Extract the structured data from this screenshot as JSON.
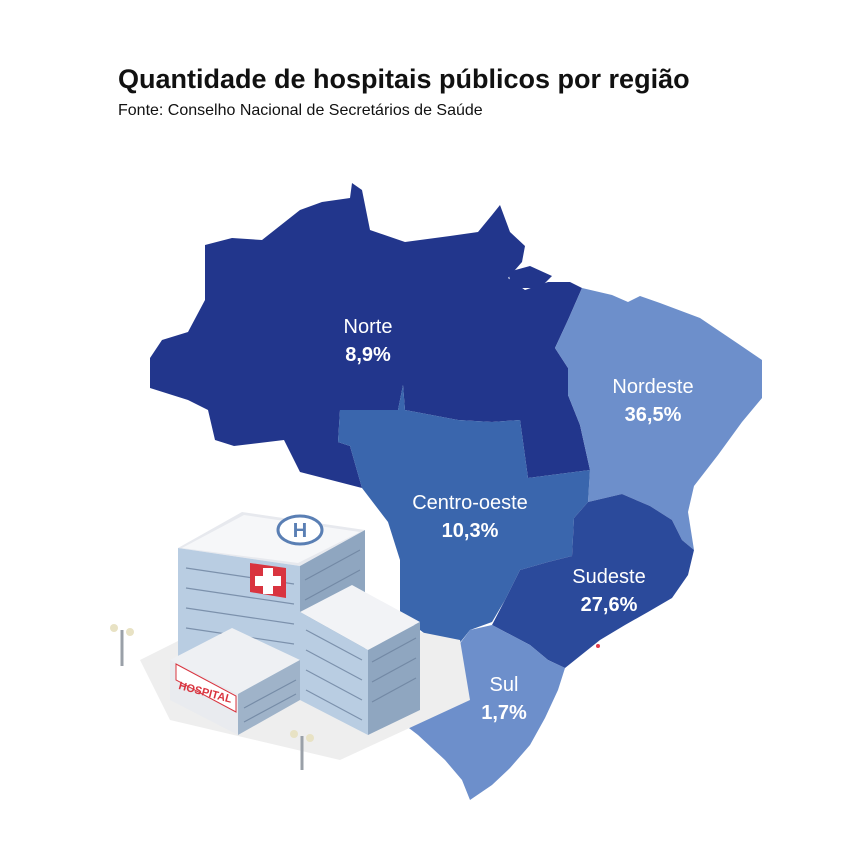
{
  "header": {
    "title": "Quantidade de hospitais públicos por região",
    "source": "Fonte: Conselho Nacional de Secretários de Saúde"
  },
  "map": {
    "country": "Brasil",
    "regions": [
      {
        "id": "norte",
        "name": "Norte",
        "value_label": "8,9%",
        "value": 8.9,
        "color": "#22368c"
      },
      {
        "id": "nordeste",
        "name": "Nordeste",
        "value_label": "36,5%",
        "value": 36.5,
        "color": "#6d8fcb"
      },
      {
        "id": "centro_oeste",
        "name": "Centro-oeste",
        "value_label": "10,3%",
        "value": 10.3,
        "color": "#3a66ad"
      },
      {
        "id": "sudeste",
        "name": "Sudeste",
        "value_label": "27,6%",
        "value": 27.6,
        "color": "#2b4a9b"
      },
      {
        "id": "sul",
        "name": "Sul",
        "value_label": "1,7%",
        "value": 1.7,
        "color": "#6d8fcb"
      }
    ]
  },
  "illustration": {
    "building_sign": "HOSPITAL",
    "rooftop_symbol": "H"
  }
}
